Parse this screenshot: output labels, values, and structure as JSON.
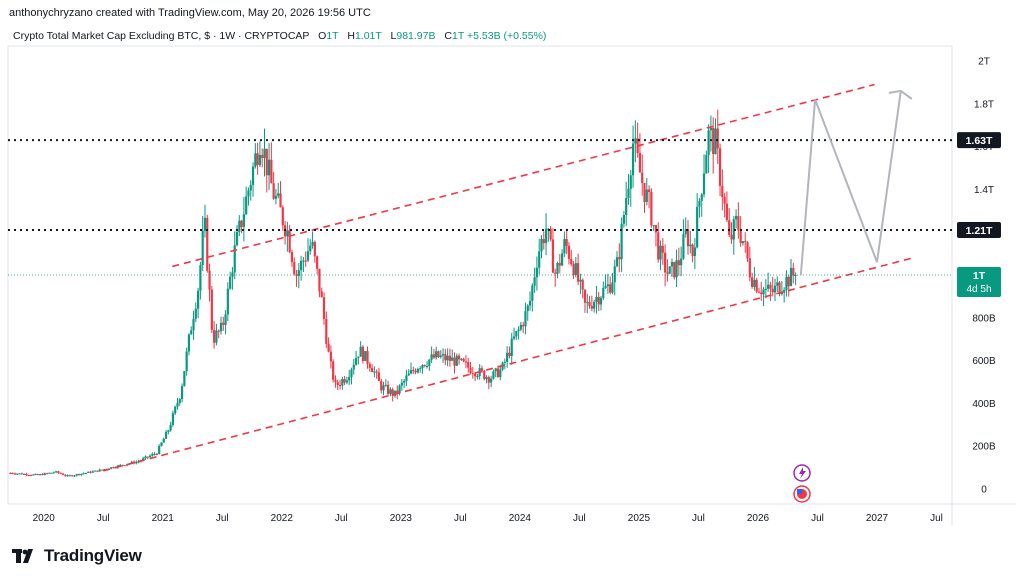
{
  "header": {
    "attribution": "anthonychryzano created with TradingView.com, May 20, 2026 19:56 UTC"
  },
  "legend": {
    "title": "Crypto Total Market Cap Excluding BTC, $ · 1W · CRYPTOCAP",
    "open_label": "O",
    "open": "1T",
    "high_label": "H",
    "high": "1.01T",
    "low_label": "L",
    "low": "981.97B",
    "close_label": "C",
    "close": "1T",
    "change": "+5.53B (+0.55%)"
  },
  "footer": {
    "brand": "TradingView"
  },
  "colors": {
    "up": "#089981",
    "down": "#F23645",
    "channel": "#F23645",
    "projection": "#B2B5BE",
    "level": "#131722",
    "last_price_bg": "#089981"
  },
  "price_tag": {
    "value": "1T",
    "countdown": "4d 5h"
  },
  "levels": [
    {
      "label": "1.63T",
      "value": 1630
    },
    {
      "label": "1.21T",
      "value": 1210
    }
  ],
  "chart_data": {
    "type": "candlestick",
    "title": "Crypto Total Market Cap Excluding BTC, $ · 1W · CRYPTOCAP",
    "units": "billions USD",
    "y_ticks": [
      {
        "label": "2T",
        "value": 2000
      },
      {
        "label": "1.8T",
        "value": 1800
      },
      {
        "label": "1.6T",
        "value": 1600
      },
      {
        "label": "1.4T",
        "value": 1400
      },
      {
        "label": "1.2T",
        "value": 1200
      },
      {
        "label": "800B",
        "value": 800
      },
      {
        "label": "600B",
        "value": 600
      },
      {
        "label": "400B",
        "value": 400
      },
      {
        "label": "200B",
        "value": 200
      },
      {
        "label": "0",
        "value": 0
      }
    ],
    "x_ticks": [
      {
        "label": "2020",
        "t": 2020.0
      },
      {
        "label": "Jul",
        "t": 2020.5
      },
      {
        "label": "2021",
        "t": 2021.0
      },
      {
        "label": "Jul",
        "t": 2021.5
      },
      {
        "label": "2022",
        "t": 2022.0
      },
      {
        "label": "Jul",
        "t": 2022.5
      },
      {
        "label": "2023",
        "t": 2023.0
      },
      {
        "label": "Jul",
        "t": 2023.5
      },
      {
        "label": "2024",
        "t": 2024.0
      },
      {
        "label": "Jul",
        "t": 2024.5
      },
      {
        "label": "2025",
        "t": 2025.0
      },
      {
        "label": "Jul",
        "t": 2025.5
      },
      {
        "label": "2026",
        "t": 2026.0
      },
      {
        "label": "Jul",
        "t": 2026.5
      },
      {
        "label": "2027",
        "t": 2027.0
      },
      {
        "label": "Jul",
        "t": 2027.5
      }
    ],
    "x_range": [
      2019.7,
      2027.63
    ],
    "y_range": [
      -70,
      2070
    ],
    "last_close": 1000,
    "close_path": [
      [
        2019.72,
        75
      ],
      [
        2019.95,
        65
      ],
      [
        2020.1,
        80
      ],
      [
        2020.2,
        60
      ],
      [
        2020.45,
        85
      ],
      [
        2020.6,
        105
      ],
      [
        2020.8,
        130
      ],
      [
        2020.95,
        170
      ],
      [
        2021.05,
        280
      ],
      [
        2021.15,
        450
      ],
      [
        2021.25,
        800
      ],
      [
        2021.3,
        950
      ],
      [
        2021.35,
        1250
      ],
      [
        2021.42,
        700
      ],
      [
        2021.5,
        750
      ],
      [
        2021.6,
        1100
      ],
      [
        2021.7,
        1350
      ],
      [
        2021.82,
        1650
      ],
      [
        2021.92,
        1400
      ],
      [
        2022.05,
        1200
      ],
      [
        2022.12,
        1000
      ],
      [
        2022.25,
        1150
      ],
      [
        2022.33,
        900
      ],
      [
        2022.4,
        600
      ],
      [
        2022.45,
        480
      ],
      [
        2022.55,
        530
      ],
      [
        2022.65,
        650
      ],
      [
        2022.75,
        580
      ],
      [
        2022.83,
        480
      ],
      [
        2022.95,
        440
      ],
      [
        2023.05,
        520
      ],
      [
        2023.15,
        580
      ],
      [
        2023.3,
        620
      ],
      [
        2023.45,
        600
      ],
      [
        2023.6,
        560
      ],
      [
        2023.75,
        520
      ],
      [
        2023.85,
        560
      ],
      [
        2023.95,
        700
      ],
      [
        2024.0,
        750
      ],
      [
        2024.08,
        860
      ],
      [
        2024.15,
        1100
      ],
      [
        2024.22,
        1220
      ],
      [
        2024.3,
        1000
      ],
      [
        2024.38,
        1150
      ],
      [
        2024.45,
        1050
      ],
      [
        2024.55,
        850
      ],
      [
        2024.65,
        900
      ],
      [
        2024.75,
        950
      ],
      [
        2024.82,
        1050
      ],
      [
        2024.9,
        1400
      ],
      [
        2024.95,
        1620
      ],
      [
        2025.02,
        1450
      ],
      [
        2025.1,
        1300
      ],
      [
        2025.17,
        1100
      ],
      [
        2025.25,
        1000
      ],
      [
        2025.33,
        1050
      ],
      [
        2025.4,
        1200
      ],
      [
        2025.45,
        1100
      ],
      [
        2025.52,
        1400
      ],
      [
        2025.58,
        1650
      ],
      [
        2025.64,
        1620
      ],
      [
        2025.7,
        1400
      ],
      [
        2025.76,
        1150
      ],
      [
        2025.82,
        1250
      ],
      [
        2025.88,
        1150
      ],
      [
        2025.94,
        1000
      ],
      [
        2026.0,
        950
      ],
      [
        2026.05,
        930
      ],
      [
        2026.12,
        920
      ],
      [
        2026.2,
        960
      ],
      [
        2026.3,
        1000
      ],
      [
        2026.33,
        1000
      ]
    ],
    "channel_upper": [
      [
        2021.08,
        1040
      ],
      [
        2026.98,
        1890
      ]
    ],
    "channel_lower": [
      [
        2020.5,
        85
      ],
      [
        2027.3,
        1080
      ]
    ],
    "projection": [
      [
        2026.36,
        1000
      ],
      [
        2026.48,
        1820
      ],
      [
        2027.0,
        1060
      ],
      [
        2027.2,
        1860
      ]
    ]
  }
}
